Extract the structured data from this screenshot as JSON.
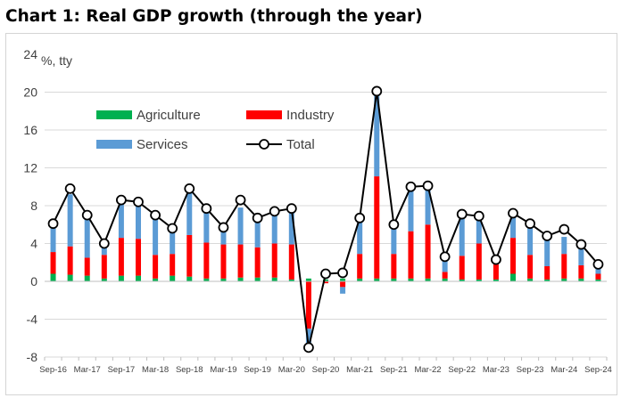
{
  "title": "Chart 1: Real GDP growth (through the year)",
  "chart_data": {
    "type": "bar",
    "stacked": true,
    "title": "Chart 1: Real GDP growth (through the year)",
    "ylabel": "%, tty",
    "ylim": [
      -8,
      24
    ],
    "yticks": [
      -8,
      -4,
      0,
      4,
      8,
      12,
      16,
      20,
      24
    ],
    "grid": true,
    "legend_position": "top-left inside plot",
    "x": [
      "Sep-16",
      "Dec-16",
      "Mar-17",
      "Jun-17",
      "Sep-17",
      "Dec-17",
      "Mar-18",
      "Jun-18",
      "Sep-18",
      "Dec-18",
      "Mar-19",
      "Jun-19",
      "Sep-19",
      "Dec-19",
      "Mar-20",
      "Jun-20",
      "Sep-20",
      "Dec-20",
      "Mar-21",
      "Jun-21",
      "Sep-21",
      "Dec-21",
      "Mar-22",
      "Jun-22",
      "Sep-22",
      "Dec-22",
      "Mar-23",
      "Jun-23",
      "Sep-23",
      "Dec-23",
      "Mar-24",
      "Jun-24",
      "Sep-24"
    ],
    "x_tick_labels": [
      "Sep-16",
      "Mar-17",
      "Sep-17",
      "Mar-18",
      "Sep-18",
      "Mar-19",
      "Sep-19",
      "Mar-20",
      "Sep-20",
      "Mar-21",
      "Sep-21",
      "Mar-22",
      "Sep-22",
      "Mar-23",
      "Sep-23",
      "Mar-24",
      "Sep-24"
    ],
    "series": [
      {
        "name": "Agriculture",
        "kind": "bar",
        "color": "#00b050",
        "values": [
          0.8,
          0.7,
          0.6,
          0.3,
          0.6,
          0.6,
          0.3,
          0.6,
          0.5,
          0.3,
          0.3,
          0.4,
          0.4,
          0.4,
          0.2,
          0.3,
          0.2,
          0.3,
          0.3,
          0.3,
          0.3,
          0.3,
          0.3,
          0.3,
          0.2,
          0.2,
          0.2,
          0.8,
          0.3,
          0.2,
          0.3,
          0.3,
          0.2
        ]
      },
      {
        "name": "Industry",
        "kind": "bar",
        "color": "#ff0000",
        "values": [
          2.3,
          3.0,
          1.9,
          2.5,
          4.0,
          3.9,
          2.5,
          2.3,
          4.4,
          3.8,
          3.6,
          3.5,
          3.2,
          3.6,
          3.7,
          -5.0,
          -0.2,
          -0.6,
          2.6,
          10.8,
          2.6,
          5.0,
          5.7,
          0.7,
          2.5,
          3.8,
          1.6,
          3.8,
          2.5,
          1.4,
          2.6,
          1.4,
          0.6
        ]
      },
      {
        "name": "Services",
        "kind": "bar",
        "color": "#5b9bd5",
        "values": [
          2.9,
          5.5,
          4.3,
          0.9,
          3.6,
          3.7,
          3.9,
          2.5,
          4.5,
          3.4,
          1.7,
          3.9,
          2.8,
          3.2,
          3.5,
          -2.0,
          0.0,
          -0.7,
          3.7,
          8.6,
          2.9,
          4.3,
          3.8,
          1.2,
          4.0,
          2.8,
          0.5,
          2.5,
          3.0,
          2.9,
          1.8,
          1.8,
          0.7
        ]
      },
      {
        "name": "Total",
        "kind": "line",
        "color": "#000000",
        "values": [
          6.1,
          9.8,
          7.0,
          4.0,
          8.6,
          8.4,
          7.0,
          5.6,
          9.8,
          7.7,
          5.7,
          8.6,
          6.7,
          7.4,
          7.7,
          -7.0,
          0.8,
          0.9,
          6.7,
          20.1,
          6.0,
          10.0,
          10.1,
          2.6,
          7.1,
          6.9,
          2.3,
          7.2,
          6.1,
          4.8,
          5.5,
          3.9,
          1.8
        ]
      }
    ]
  }
}
